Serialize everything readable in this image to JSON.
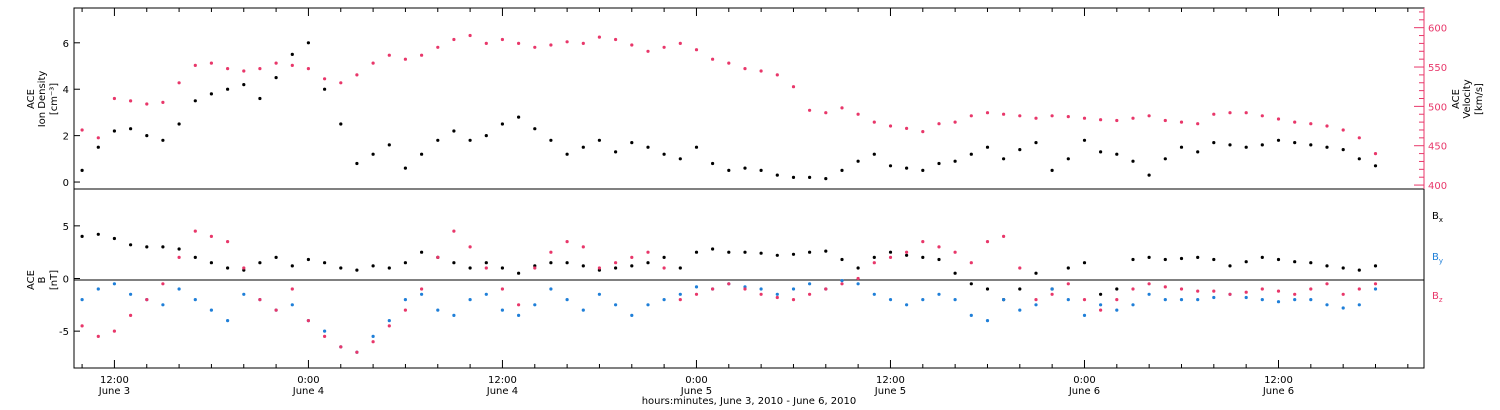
{
  "colors": {
    "black": "#000000",
    "red": "#e8376a",
    "blue": "#1f7fd8"
  },
  "footer": {
    "title": "hours:minutes, June  3, 2010 - June  6, 2010"
  },
  "panels": {
    "top": {
      "ylabel_left": [
        "ACE",
        "Ion Density",
        "[cm⁻³]"
      ],
      "ylabel_right": [
        "ACE",
        "Velocity",
        "[km/s]"
      ]
    },
    "bottom": {
      "ylabel_left": [
        "ACE",
        "B",
        "[nT]"
      ],
      "legend": [
        {
          "base": "B",
          "sub": "x",
          "color": "#000000"
        },
        {
          "base": "B",
          "sub": "y",
          "color": "#1f7fd8"
        },
        {
          "base": "B",
          "sub": "z",
          "color": "#e8376a"
        }
      ]
    }
  },
  "x_ticks": [
    {
      "time": "12:00",
      "date": "June 3"
    },
    {
      "time": "0:00",
      "date": "June 4"
    },
    {
      "time": "12:00",
      "date": "June 4"
    },
    {
      "time": "0:00",
      "date": "June 5"
    },
    {
      "time": "12:00",
      "date": "June 5"
    },
    {
      "time": "0:00",
      "date": "June 6"
    },
    {
      "time": "12:00",
      "date": "June 6"
    }
  ],
  "chart_data": [
    {
      "type": "scatter",
      "xlabel": "hours:minutes, June  3, 2010 - June  6, 2010",
      "x_unit": "hours since 2010-06-03 00:00",
      "xlim": [
        9.5,
        93
      ],
      "ylabel": "ACE Ion Density [cm-3]",
      "ylim": [
        -0.3,
        7.5
      ],
      "yticks": [
        0,
        2,
        4,
        6
      ],
      "ylabel_right": "ACE Velocity [km/s]",
      "ylim_right": [
        395,
        625
      ],
      "yticks_right": [
        400,
        450,
        500,
        550,
        600
      ],
      "series": [
        {
          "name": "Ion Density",
          "axis": "left",
          "color": "#000000",
          "x": [
            10,
            11,
            12,
            13,
            14,
            15,
            16,
            17,
            18,
            19,
            20,
            21,
            22,
            23,
            24,
            25,
            26,
            27,
            28,
            29,
            30,
            31,
            32,
            33,
            34,
            35,
            36,
            37,
            38,
            39,
            40,
            41,
            42,
            43,
            44,
            45,
            46,
            47,
            48,
            49,
            50,
            51,
            52,
            53,
            54,
            55,
            56,
            57,
            58,
            59,
            60,
            61,
            62,
            63,
            64,
            65,
            66,
            67,
            68,
            69,
            70,
            71,
            72,
            73,
            74,
            75,
            76,
            77,
            78,
            79,
            80,
            81,
            82,
            83,
            84,
            85,
            86,
            87,
            88,
            89,
            90
          ],
          "y": [
            0.5,
            1.5,
            2.2,
            2.3,
            2.0,
            1.8,
            2.5,
            3.5,
            3.8,
            4.0,
            4.2,
            3.6,
            4.5,
            5.5,
            6.0,
            4.0,
            2.5,
            0.8,
            1.2,
            1.6,
            0.6,
            1.2,
            1.8,
            2.2,
            1.8,
            2.0,
            2.5,
            2.8,
            2.3,
            1.8,
            1.2,
            1.5,
            1.8,
            1.3,
            1.7,
            1.5,
            1.2,
            1.0,
            1.5,
            0.8,
            0.5,
            0.6,
            0.5,
            0.3,
            0.2,
            0.2,
            0.15,
            0.5,
            0.9,
            1.2,
            0.7,
            0.6,
            0.5,
            0.8,
            0.9,
            1.2,
            1.5,
            1.0,
            1.4,
            1.7,
            0.5,
            1.0,
            1.8,
            1.3,
            1.2,
            0.9,
            0.3,
            1.0,
            1.5,
            1.3,
            1.7,
            1.6,
            1.5,
            1.6,
            1.8,
            1.7,
            1.6,
            1.5,
            1.4,
            1.0,
            0.7
          ]
        },
        {
          "name": "Velocity",
          "axis": "right",
          "color": "#e8376a",
          "x": [
            10,
            11,
            12,
            13,
            14,
            15,
            16,
            17,
            18,
            19,
            20,
            21,
            22,
            23,
            24,
            25,
            26,
            27,
            28,
            29,
            30,
            31,
            32,
            33,
            34,
            35,
            36,
            37,
            38,
            39,
            40,
            41,
            42,
            43,
            44,
            45,
            46,
            47,
            48,
            49,
            50,
            51,
            52,
            53,
            54,
            55,
            56,
            57,
            58,
            59,
            60,
            61,
            62,
            63,
            64,
            65,
            66,
            67,
            68,
            69,
            70,
            71,
            72,
            73,
            74,
            75,
            76,
            77,
            78,
            79,
            80,
            81,
            82,
            83,
            84,
            85,
            86,
            87,
            88,
            89,
            90
          ],
          "y": [
            470,
            460,
            510,
            507,
            503,
            505,
            530,
            552,
            555,
            548,
            545,
            548,
            555,
            552,
            548,
            535,
            530,
            540,
            555,
            565,
            560,
            565,
            575,
            585,
            590,
            580,
            585,
            580,
            575,
            578,
            582,
            580,
            588,
            585,
            578,
            570,
            575,
            580,
            572,
            560,
            555,
            548,
            545,
            540,
            525,
            495,
            492,
            498,
            490,
            480,
            475,
            472,
            468,
            478,
            480,
            488,
            492,
            490,
            488,
            485,
            488,
            487,
            485,
            483,
            482,
            485,
            488,
            482,
            480,
            478,
            490,
            492,
            492,
            488,
            484,
            480,
            478,
            475,
            470,
            460,
            440
          ]
        }
      ]
    },
    {
      "type": "scatter",
      "x_unit": "hours since 2010-06-03 00:00",
      "xlim": [
        9.5,
        93
      ],
      "ylabel": "ACE B [nT]",
      "ylim": [
        -8.5,
        8.5
      ],
      "yticks": [
        -5,
        0,
        5
      ],
      "series": [
        {
          "name": "Bx",
          "color": "#000000",
          "x": [
            10,
            11,
            12,
            13,
            14,
            15,
            16,
            17,
            18,
            19,
            20,
            21,
            22,
            23,
            24,
            25,
            26,
            27,
            28,
            29,
            30,
            31,
            32,
            33,
            34,
            35,
            36,
            37,
            38,
            39,
            40,
            41,
            42,
            43,
            44,
            45,
            46,
            47,
            48,
            49,
            50,
            51,
            52,
            53,
            54,
            55,
            56,
            57,
            58,
            59,
            60,
            61,
            62,
            63,
            64,
            65,
            66,
            67,
            68,
            69,
            70,
            71,
            72,
            73,
            74,
            75,
            76,
            77,
            78,
            79,
            80,
            81,
            82,
            83,
            84,
            85,
            86,
            87,
            88,
            89,
            90
          ],
          "y": [
            4.0,
            4.2,
            3.8,
            3.2,
            3.0,
            3.0,
            2.8,
            2.0,
            1.5,
            1.0,
            0.8,
            1.5,
            2.0,
            1.2,
            1.8,
            1.5,
            1.0,
            0.8,
            1.2,
            1.0,
            1.5,
            2.5,
            2.0,
            1.5,
            1.0,
            1.5,
            1.0,
            0.5,
            1.2,
            1.5,
            1.5,
            1.2,
            0.8,
            1.0,
            1.2,
            1.5,
            2.0,
            1.0,
            2.5,
            2.8,
            2.5,
            2.5,
            2.4,
            2.2,
            2.3,
            2.5,
            2.6,
            1.8,
            1.0,
            2.0,
            2.5,
            2.2,
            2.0,
            1.8,
            0.5,
            -0.5,
            -1.0,
            -2.0,
            -1.0,
            0.5,
            -1.0,
            1.0,
            1.5,
            -1.5,
            -1.0,
            1.8,
            2.0,
            1.8,
            1.9,
            2.0,
            1.8,
            1.2,
            1.6,
            2.0,
            1.8,
            1.6,
            1.5,
            1.2,
            1.0,
            0.8,
            1.2
          ]
        },
        {
          "name": "By",
          "color": "#1f7fd8",
          "x": [
            10,
            11,
            12,
            13,
            14,
            15,
            16,
            17,
            18,
            19,
            20,
            21,
            22,
            23,
            24,
            25,
            26,
            27,
            28,
            29,
            30,
            31,
            32,
            33,
            34,
            35,
            36,
            37,
            38,
            39,
            40,
            41,
            42,
            43,
            44,
            45,
            46,
            47,
            48,
            49,
            50,
            51,
            52,
            53,
            54,
            55,
            56,
            57,
            58,
            59,
            60,
            61,
            62,
            63,
            64,
            65,
            66,
            67,
            68,
            69,
            70,
            71,
            72,
            73,
            74,
            75,
            76,
            77,
            78,
            79,
            80,
            81,
            82,
            83,
            84,
            85,
            86,
            87,
            88,
            89,
            90
          ],
          "y": [
            -2.0,
            -1.0,
            -0.5,
            -1.5,
            -2.0,
            -2.5,
            -1.0,
            -2.0,
            -3.0,
            -4.0,
            -1.5,
            -2.0,
            -3.0,
            -2.5,
            -4.0,
            -5.0,
            -6.5,
            -7.0,
            -5.5,
            -4.0,
            -2.0,
            -1.5,
            -3.0,
            -3.5,
            -2.0,
            -1.5,
            -3.0,
            -3.5,
            -2.5,
            -1.0,
            -2.0,
            -3.0,
            -1.5,
            -2.5,
            -3.5,
            -2.5,
            -2.0,
            -1.5,
            -0.8,
            -1.0,
            -0.5,
            -0.8,
            -1.0,
            -1.5,
            -1.0,
            -0.5,
            -1.0,
            -0.2,
            -0.5,
            -1.5,
            -2.0,
            -2.5,
            -2.0,
            -1.5,
            -2.0,
            -3.5,
            -4.0,
            -2.0,
            -3.0,
            -2.5,
            -1.0,
            -2.0,
            -3.5,
            -2.5,
            -3.0,
            -2.5,
            -1.5,
            -2.0,
            -2.0,
            -2.0,
            -1.8,
            -1.5,
            -1.8,
            -2.0,
            -2.2,
            -2.0,
            -2.0,
            -2.5,
            -2.8,
            -2.5,
            -1.0
          ]
        },
        {
          "name": "Bz",
          "color": "#e8376a",
          "x": [
            10,
            11,
            12,
            13,
            14,
            15,
            16,
            17,
            18,
            19,
            20,
            21,
            22,
            23,
            24,
            25,
            26,
            27,
            28,
            29,
            30,
            31,
            32,
            33,
            34,
            35,
            36,
            37,
            38,
            39,
            40,
            41,
            42,
            43,
            44,
            45,
            46,
            47,
            48,
            49,
            50,
            51,
            52,
            53,
            54,
            55,
            56,
            57,
            58,
            59,
            60,
            61,
            62,
            63,
            64,
            65,
            66,
            67,
            68,
            69,
            70,
            71,
            72,
            73,
            74,
            75,
            76,
            77,
            78,
            79,
            80,
            81,
            82,
            83,
            84,
            85,
            86,
            87,
            88,
            89,
            90
          ],
          "y": [
            -4.5,
            -5.5,
            -5.0,
            -3.5,
            -2.0,
            -0.5,
            2.0,
            4.5,
            4.0,
            3.5,
            1.0,
            -2.0,
            -3.0,
            -1.0,
            -4.0,
            -5.5,
            -6.5,
            -7.0,
            -6.0,
            -4.5,
            -3.0,
            -1.0,
            2.0,
            4.5,
            3.0,
            1.0,
            -1.0,
            -2.5,
            1.0,
            2.5,
            3.5,
            3.0,
            1.0,
            1.5,
            2.0,
            2.5,
            1.0,
            -2.0,
            -1.5,
            -1.0,
            -0.5,
            -1.0,
            -1.5,
            -1.8,
            -2.0,
            -1.5,
            -1.0,
            -0.5,
            0,
            1.5,
            2.0,
            2.5,
            3.5,
            3.0,
            2.5,
            1.5,
            3.5,
            4.0,
            1.0,
            -2.0,
            -1.5,
            -0.5,
            -2.0,
            -3.0,
            -2.0,
            -1.0,
            -0.5,
            -0.8,
            -1.0,
            -1.2,
            -1.2,
            -1.5,
            -1.3,
            -1.0,
            -1.2,
            -1.5,
            -1.0,
            -0.5,
            -1.5,
            -1.0,
            -0.5
          ]
        }
      ]
    }
  ]
}
